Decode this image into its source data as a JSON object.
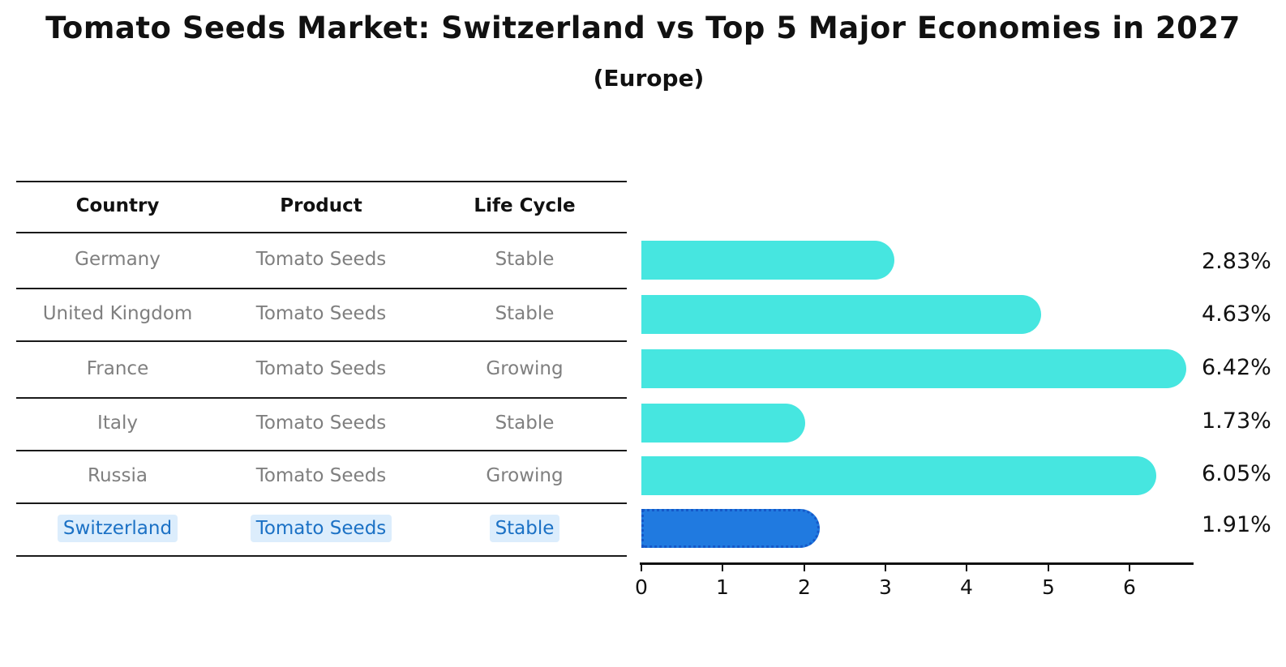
{
  "title": "Tomato Seeds Market: Switzerland vs Top 5 Major Economies in 2027",
  "subtitle": "(Europe)",
  "table": {
    "headers": [
      "Country",
      "Product",
      "Life Cycle"
    ],
    "rows": [
      {
        "country": "Germany",
        "product": "Tomato Seeds",
        "life_cycle": "Stable",
        "share": "2.83%",
        "highlighted": false
      },
      {
        "country": "United Kingdom",
        "product": "Tomato Seeds",
        "life_cycle": "Stable",
        "share": "4.63%",
        "highlighted": false
      },
      {
        "country": "France",
        "product": "Tomato Seeds",
        "life_cycle": "Growing",
        "share": "6.42%",
        "highlighted": false
      },
      {
        "country": "Italy",
        "product": "Tomato Seeds",
        "life_cycle": "Stable",
        "share": "1.73%",
        "highlighted": false
      },
      {
        "country": "Russia",
        "product": "Tomato Seeds",
        "life_cycle": "Growing",
        "share": "6.05%",
        "highlighted": false
      },
      {
        "country": "Switzerland",
        "product": "Tomato Seeds",
        "life_cycle": "Stable",
        "share": "1.91%",
        "highlighted": true
      }
    ]
  },
  "chart_data": {
    "type": "bar",
    "orientation": "horizontal",
    "title": "Tomato Seeds Market: Switzerland vs Top 5 Major Economies in 2027",
    "subtitle": "(Europe)",
    "categories": [
      "Germany",
      "United Kingdom",
      "France",
      "Italy",
      "Russia",
      "Switzerland"
    ],
    "values": [
      2.83,
      4.63,
      6.42,
      1.73,
      6.05,
      1.91
    ],
    "labels": [
      "2.83%",
      "4.63%",
      "6.42%",
      "1.73%",
      "6.05%",
      "1.91%"
    ],
    "x_ticks": [
      0,
      1,
      2,
      3,
      4,
      5,
      6
    ],
    "xlim": [
      0,
      6.8
    ],
    "xlabel": "",
    "ylabel": "",
    "grid": false,
    "legend": false,
    "bar_color": "#46e6e0",
    "highlight_bar_color": "#207ae0",
    "highlight_border_color": "#1558c8",
    "highlight_text_color": "#1b71c5",
    "highlight_index": 5
  }
}
